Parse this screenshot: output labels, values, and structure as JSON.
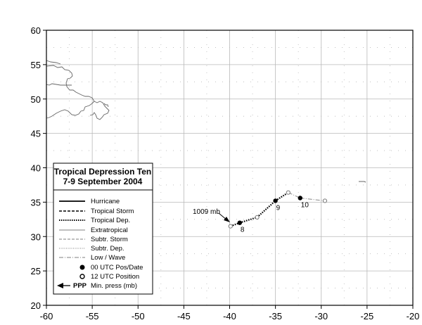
{
  "chart_data": {
    "type": "map-track",
    "title_line1": "Tropical Depression Ten",
    "title_line2": "7-9 September 2004",
    "xlim": [
      -60,
      -20
    ],
    "ylim": [
      20,
      60
    ],
    "x_ticks": [
      "-60",
      "-55",
      "-50",
      "-45",
      "-40",
      "-35",
      "-30",
      "-25",
      "-20"
    ],
    "y_ticks": [
      "20",
      "25",
      "30",
      "35",
      "40",
      "45",
      "50",
      "55",
      "60"
    ],
    "x_tick_values": [
      -60,
      -55,
      -50,
      -45,
      -40,
      -35,
      -30,
      -25,
      -20
    ],
    "y_tick_values": [
      20,
      25,
      30,
      35,
      40,
      45,
      50,
      55,
      60
    ],
    "grid": true,
    "legend_placement": "bottom-left",
    "track": [
      {
        "lon": -39.9,
        "lat": 31.5,
        "stage": "Low / Wave",
        "marker": "12 UTC"
      },
      {
        "lon": -38.9,
        "lat": 32.0,
        "stage": "Tropical Dep.",
        "marker": "00 UTC",
        "label": "8"
      },
      {
        "lon": -37.0,
        "lat": 32.8,
        "stage": "Tropical Dep.",
        "marker": "12 UTC"
      },
      {
        "lon": -35.0,
        "lat": 35.2,
        "stage": "Tropical Dep.",
        "marker": "00 UTC",
        "label": "9"
      },
      {
        "lon": -33.6,
        "lat": 36.4,
        "stage": "Low / Wave",
        "marker": "12 UTC"
      },
      {
        "lon": -32.3,
        "lat": 35.6,
        "stage": "Low / Wave",
        "marker": "00 UTC",
        "label": "10"
      },
      {
        "lon": -29.6,
        "lat": 35.2,
        "stage": "Low / Wave",
        "marker": "12 UTC"
      }
    ],
    "min_pressure": {
      "label": "1009 mb",
      "lon": -39.9,
      "lat": 31.5
    },
    "legend": {
      "items": [
        {
          "label": "Hurricane",
          "style": "solid-thick"
        },
        {
          "label": "Tropical Storm",
          "style": "dashed-thick"
        },
        {
          "label": "Tropical Dep.",
          "style": "dotted-thick"
        },
        {
          "label": "Extratropical",
          "style": "solid-thin"
        },
        {
          "label": "Subtr. Storm",
          "style": "dashed-thin"
        },
        {
          "label": "Subtr. Dep.",
          "style": "dotted-thin"
        },
        {
          "label": "Low / Wave",
          "style": "dashdot-thin"
        },
        {
          "label": "00 UTC Pos/Date",
          "style": "filled-dot"
        },
        {
          "label": "12 UTC Position",
          "style": "open-dot"
        },
        {
          "label": "Min. press (mb)",
          "style": "arrow",
          "prefix": "PPP"
        }
      ]
    },
    "colors": {
      "grid": "#b8b8b8",
      "track": "#000000",
      "land": "#666666",
      "low_wave": "#888888"
    }
  }
}
